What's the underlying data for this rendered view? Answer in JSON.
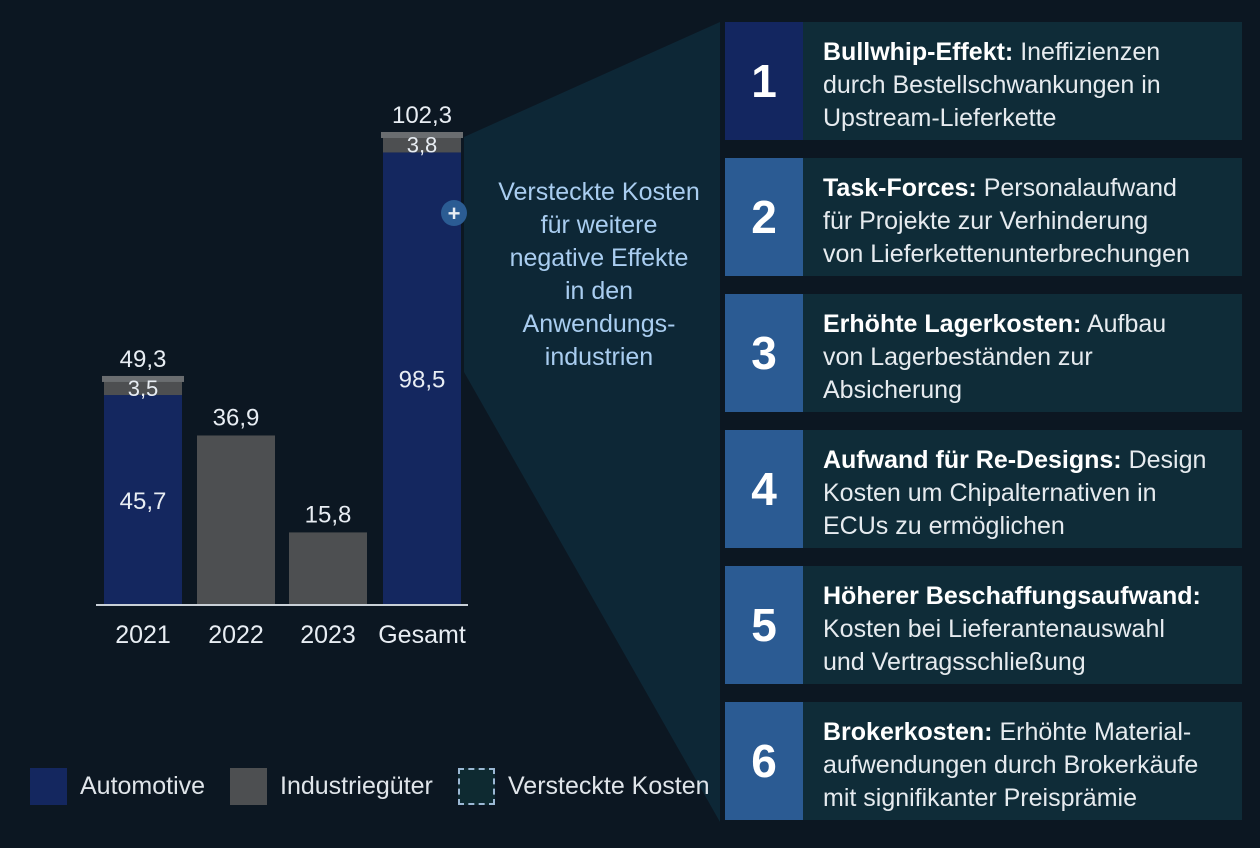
{
  "chart_data": {
    "type": "bar",
    "categories": [
      "2021",
      "2022",
      "2023",
      "Gesamt"
    ],
    "series": [
      {
        "name": "Automotive",
        "values": [
          45.7,
          null,
          null,
          98.5
        ],
        "labels": [
          "45,7",
          "",
          "",
          "98,5"
        ]
      },
      {
        "name": "Industriegüter",
        "values": [
          3.5,
          36.9,
          15.8,
          3.8
        ],
        "labels": [
          "3,5",
          "36,9",
          "15,8",
          "3,8"
        ]
      },
      {
        "name": "Versteckte Kosten",
        "values": [
          null,
          null,
          null,
          null
        ],
        "labels": [
          "",
          "",
          "",
          ""
        ]
      }
    ],
    "totals": [
      "49,3",
      null,
      null,
      "102,3"
    ],
    "ylim": [
      0,
      102.3
    ],
    "colors": {
      "automotive": "#14275f",
      "industry": "#4d4f51",
      "hidden_border": "#9bb8d4",
      "hidden_fill": "#0e2a31",
      "plus_badge": "#2b5c93"
    },
    "callout": "Versteckte Kosten für weitere negative Effekte in den Anwendungs- industrien",
    "callout_lines": [
      "Versteckte Kosten",
      "für weitere",
      "negative Effekte",
      "in den",
      "Anwendungs-",
      "industrien"
    ],
    "plus_icon": "plus-icon"
  },
  "effects": [
    {
      "number": "1",
      "title": "Bullwhip-Effekt:",
      "text_lines": [
        " Ineffizienzen",
        "durch Bestellschwankungen in",
        "Upstream-Lieferkette"
      ],
      "color": "#132660"
    },
    {
      "number": "2",
      "title": "Task-Forces:",
      "text_lines": [
        " Personalaufwand",
        "für Projekte zur Verhinderung",
        "von Lieferkettenunterbrechungen"
      ],
      "color": "#2b5b93"
    },
    {
      "number": "3",
      "title": "Erhöhte Lagerkosten:",
      "text_lines": [
        " Aufbau",
        "von Lagerbeständen zur",
        "Absicherung"
      ],
      "color": "#2b5b93"
    },
    {
      "number": "4",
      "title": "Aufwand für Re-Designs:",
      "text_lines": [
        " Design",
        "Kosten um Chipalternativen in",
        "ECUs zu ermöglichen"
      ],
      "color": "#2b5b93"
    },
    {
      "number": "5",
      "title": "Höherer Beschaffungsaufwand:",
      "text_lines": [
        "",
        "Kosten bei Lieferantenauswahl",
        "und Vertragsschließung"
      ],
      "color": "#2b5b93"
    },
    {
      "number": "6",
      "title": "Brokerkosten:",
      "text_lines": [
        " Erhöhte Material-",
        "aufwendungen durch Brokerkäufe",
        "mit signifikanter Preisprämie"
      ],
      "color": "#2b5b93"
    }
  ],
  "legend": {
    "automotive": "Automotive",
    "industry": "Industriegüter",
    "hidden": "Versteckte Kosten"
  }
}
